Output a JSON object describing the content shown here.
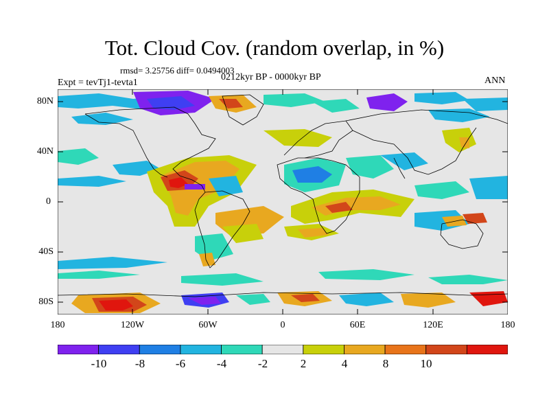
{
  "title": "Tot. Cloud Cov. (random overlap, in %)",
  "stats": "rmsd= 3.25756 diff= 0.0494003",
  "experiment": "Expt = tevTj1-tevta1",
  "period": "0212kyr BP - 0000kyr BP",
  "season": "ANN",
  "y_ticks": [
    "80N",
    "40N",
    "0",
    "40S",
    "80S"
  ],
  "x_ticks": [
    "180",
    "120W",
    "60W",
    "0",
    "60E",
    "120E",
    "180"
  ],
  "legend": {
    "labels": [
      "-10",
      "-8",
      "-6",
      "-4",
      "-2",
      "2",
      "4",
      "8",
      "10"
    ],
    "colors": [
      "#7f22ee",
      "#3f3ff2",
      "#1f7fe4",
      "#22b4e0",
      "#2fd8b8",
      "#e6e6e6",
      "#c8d00a",
      "#e8a820",
      "#e8741a",
      "#d2461a",
      "#e0160e"
    ]
  },
  "colors": {
    "background_land_ocean": "#e6e6e6",
    "coastline": "#000000"
  }
}
